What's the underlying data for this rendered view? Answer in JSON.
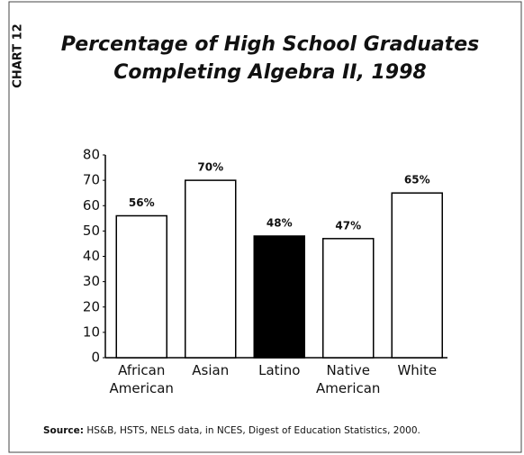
{
  "chart_data": {
    "type": "bar",
    "side_label": "CHART 12",
    "title": [
      "Percentage of High School Graduates",
      "Completing Algebra II, 1998"
    ],
    "categories": [
      "African American",
      "Asian",
      "Latino",
      "Native American",
      "White"
    ],
    "values": [
      56,
      70,
      48,
      47,
      65
    ],
    "value_labels": [
      "56%",
      "70%",
      "48%",
      "47%",
      "65%"
    ],
    "colors": [
      "#ffffff",
      "#ffffff",
      "#000000",
      "#ffffff",
      "#ffffff"
    ],
    "ylim": [
      0,
      80
    ],
    "yticks": [
      0,
      10,
      20,
      30,
      40,
      50,
      60,
      70,
      80
    ],
    "grid": false,
    "source_label": "Source:",
    "source_text": "HS&B, HSTS, NELS data, in NCES, Digest of Education Statistics, 2000."
  }
}
